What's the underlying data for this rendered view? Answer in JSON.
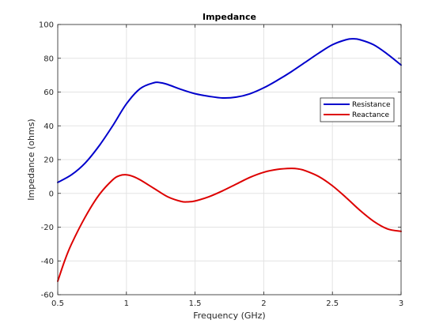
{
  "chart_data": {
    "type": "line",
    "title": "Impedance",
    "xlabel": "Frequency (GHz)",
    "ylabel": "Impedance (ohms)",
    "xlim": [
      0.5,
      3
    ],
    "ylim": [
      -60,
      100
    ],
    "xticks": [
      0.5,
      1,
      1.5,
      2,
      2.5,
      3
    ],
    "xtick_labels": [
      "0.5",
      "1",
      "1.5",
      "2",
      "2.5",
      "3"
    ],
    "yticks": [
      -60,
      -40,
      -20,
      0,
      20,
      40,
      60,
      80,
      100
    ],
    "ytick_labels": [
      "-60",
      "-40",
      "-20",
      "0",
      "20",
      "40",
      "60",
      "80",
      "100"
    ],
    "grid": true,
    "legend_position": "right",
    "series": [
      {
        "name": "Resistance",
        "color": "#0000cc",
        "x": [
          0.5,
          0.6,
          0.7,
          0.8,
          0.9,
          1.0,
          1.1,
          1.2,
          1.25,
          1.3,
          1.4,
          1.5,
          1.6,
          1.7,
          1.8,
          1.9,
          2.0,
          2.1,
          2.2,
          2.3,
          2.4,
          2.5,
          2.6,
          2.65,
          2.7,
          2.8,
          2.9,
          3.0
        ],
        "y": [
          6.5,
          11,
          18,
          28,
          40,
          53,
          62,
          65.5,
          65.5,
          64.5,
          61.5,
          59,
          57.5,
          56.5,
          57,
          59,
          62.5,
          67,
          72,
          77.5,
          83,
          88,
          91,
          91.5,
          91,
          88,
          82.5,
          76
        ]
      },
      {
        "name": "Reactance",
        "color": "#dd0000",
        "x": [
          0.5,
          0.55,
          0.6,
          0.7,
          0.8,
          0.9,
          0.95,
          1.0,
          1.05,
          1.1,
          1.2,
          1.3,
          1.4,
          1.45,
          1.5,
          1.6,
          1.7,
          1.8,
          1.9,
          2.0,
          2.1,
          2.2,
          2.25,
          2.3,
          2.4,
          2.5,
          2.6,
          2.7,
          2.8,
          2.9,
          3.0
        ],
        "y": [
          -52,
          -40,
          -30,
          -14,
          -1,
          8,
          10.5,
          11,
          10,
          8,
          3,
          -2,
          -4.8,
          -5,
          -4.5,
          -2,
          1.5,
          5.5,
          9.5,
          12.5,
          14.2,
          14.8,
          14.5,
          13.5,
          10,
          4.5,
          -2.5,
          -10,
          -16.5,
          -21,
          -22.5
        ]
      }
    ]
  }
}
